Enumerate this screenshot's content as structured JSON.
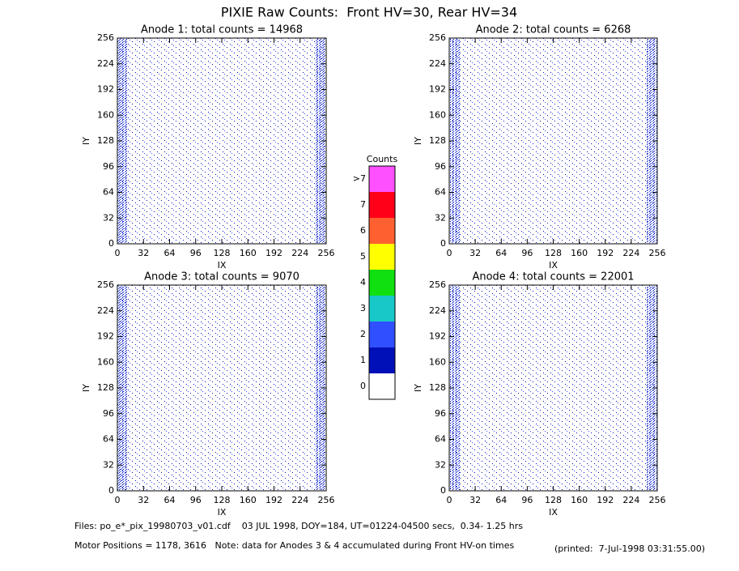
{
  "title": "PIXIE Raw Counts:  Front HV=30, Rear HV=34",
  "chart_data": [
    {
      "type": "heatmap",
      "title": "Anode 1: total counts = 14968",
      "xlabel": "IX",
      "ylabel": "IY",
      "xlim": [
        0,
        256
      ],
      "ylim": [
        0,
        256
      ],
      "xticks": [
        0,
        32,
        64,
        96,
        128,
        160,
        192,
        224,
        256
      ],
      "yticks": [
        0,
        32,
        64,
        96,
        128,
        160,
        192,
        224,
        256
      ]
    },
    {
      "type": "heatmap",
      "title": "Anode 2: total counts = 6268",
      "xlabel": "IX",
      "ylabel": "IY",
      "xlim": [
        0,
        256
      ],
      "ylim": [
        0,
        256
      ],
      "xticks": [
        0,
        32,
        64,
        96,
        128,
        160,
        192,
        224,
        256
      ],
      "yticks": [
        0,
        32,
        64,
        96,
        128,
        160,
        192,
        224,
        256
      ]
    },
    {
      "type": "heatmap",
      "title": "Anode 3: total counts = 9070",
      "xlabel": "IX",
      "ylabel": "IY",
      "xlim": [
        0,
        256
      ],
      "ylim": [
        0,
        256
      ],
      "xticks": [
        0,
        32,
        64,
        96,
        128,
        160,
        192,
        224,
        256
      ],
      "yticks": [
        0,
        32,
        64,
        96,
        128,
        160,
        192,
        224,
        256
      ]
    },
    {
      "type": "heatmap",
      "title": "Anode 4: total counts = 22001",
      "xlabel": "IX",
      "ylabel": "IY",
      "xlim": [
        0,
        256
      ],
      "ylim": [
        0,
        256
      ],
      "xticks": [
        0,
        32,
        64,
        96,
        128,
        160,
        192,
        224,
        256
      ],
      "yticks": [
        0,
        32,
        64,
        96,
        128,
        160,
        192,
        224,
        256
      ]
    }
  ],
  "colorbar": {
    "title": "Counts",
    "labels": [
      0,
      1,
      2,
      3,
      4,
      5,
      6,
      7,
      ">7"
    ],
    "colors": [
      "#ffffff",
      "#0010b8",
      "#3050ff",
      "#18c8c8",
      "#10e010",
      "#ffff00",
      "#ff6030",
      "#ff0018",
      "#ff50ff"
    ]
  },
  "footer": {
    "files": "Files: po_e*_pix_19980703_v01.cdf    03 JUL 1998, DOY=184, UT=01224-04500 secs,  0.34- 1.25 hrs",
    "motor": "Motor Positions = 1178, 3616   Note: data for Anodes 3 & 4 accumulated during Front HV-on times",
    "printed": "(printed:  7-Jul-1998 03:31:55.00)"
  }
}
